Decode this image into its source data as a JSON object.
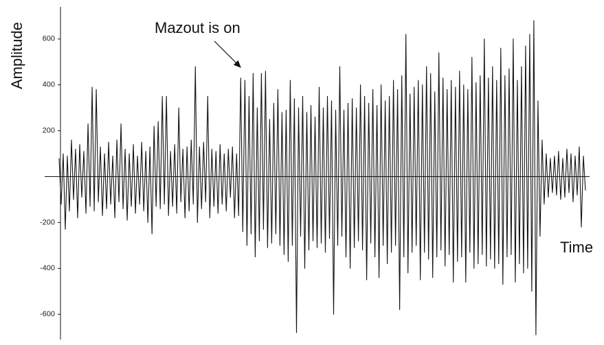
{
  "chart_data": {
    "type": "line",
    "y_label": "Amplitude",
    "x_label": "Time",
    "annotation": "Mazout is on",
    "color": "#111111",
    "ylim": [
      -710,
      740
    ],
    "yticks": [
      600,
      400,
      200,
      -200,
      -400,
      -600
    ],
    "values": [
      80,
      -120,
      100,
      -230,
      90,
      -150,
      160,
      -100,
      120,
      -180,
      140,
      -90,
      110,
      -160,
      230,
      -130,
      390,
      -150,
      380,
      -110,
      130,
      -170,
      100,
      -140,
      150,
      -120,
      90,
      -180,
      160,
      -110,
      230,
      -140,
      120,
      -190,
      100,
      -130,
      140,
      -160,
      90,
      -120,
      150,
      -150,
      110,
      -200,
      130,
      -250,
      220,
      -130,
      240,
      -140,
      350,
      -120,
      350,
      -170,
      110,
      -130,
      140,
      -160,
      300,
      -110,
      120,
      -180,
      130,
      -150,
      160,
      -120,
      480,
      -200,
      130,
      -140,
      150,
      -110,
      350,
      -180,
      120,
      -130,
      110,
      -160,
      140,
      -120,
      100,
      -150,
      120,
      -90,
      130,
      -180,
      100,
      -170,
      430,
      -240,
      420,
      -300,
      350,
      -250,
      450,
      -350,
      300,
      -280,
      450,
      -230,
      460,
      -310,
      250,
      -290,
      320,
      -250,
      380,
      -300,
      280,
      -340,
      290,
      -370,
      420,
      -300,
      340,
      -680,
      300,
      -260,
      350,
      -400,
      280,
      -320,
      310,
      -280,
      260,
      -310,
      390,
      -290,
      300,
      -330,
      350,
      -270,
      330,
      -600,
      290,
      -300,
      480,
      -260,
      290,
      -350,
      320,
      -400,
      340,
      -310,
      300,
      -280,
      400,
      -320,
      350,
      -450,
      320,
      -290,
      380,
      -350,
      310,
      -440,
      400,
      -300,
      330,
      -380,
      350,
      -330,
      420,
      -300,
      380,
      -580,
      440,
      -350,
      620,
      -420,
      360,
      -330,
      390,
      -300,
      420,
      -450,
      400,
      -330,
      480,
      -360,
      450,
      -440,
      370,
      -350,
      540,
      -320,
      430,
      -390,
      380,
      -340,
      420,
      -460,
      390,
      -370,
      460,
      -350,
      400,
      -460,
      380,
      -330,
      520,
      -400,
      410,
      -380,
      440,
      -340,
      600,
      -390,
      430,
      -360,
      480,
      -400,
      420,
      -380,
      560,
      -470,
      440,
      -350,
      470,
      -340,
      600,
      -460,
      420,
      -380,
      480,
      -420,
      570,
      -400,
      620,
      -500,
      680,
      -690,
      330,
      -260,
      160,
      -120,
      100,
      -90,
      80,
      -70,
      90,
      -80,
      110,
      -100,
      80,
      -90,
      120,
      -70,
      100,
      -110,
      90,
      -80,
      130,
      -220,
      90,
      -60
    ]
  }
}
